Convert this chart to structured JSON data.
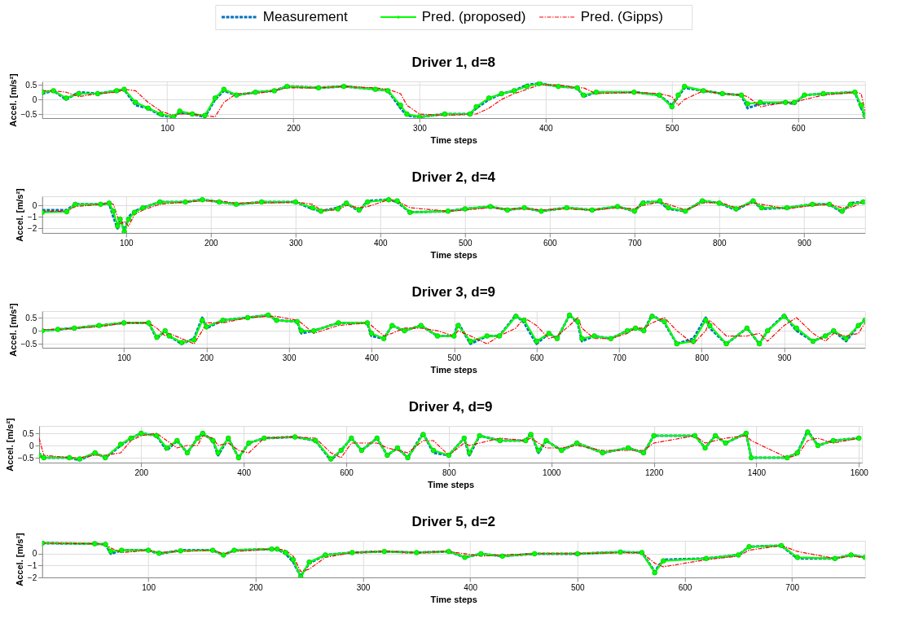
{
  "chart_data": [
    {
      "type": "line",
      "title": "Driver 1, d=8",
      "xlabel": "Time steps",
      "ylabel": "Accel. [m/s²]",
      "legend": "top",
      "grid": true,
      "xlim": [
        1,
        653
      ],
      "ylim": [
        -0.64,
        0.62
      ],
      "xticks": [
        100,
        200,
        300,
        400,
        500,
        600
      ],
      "yticks": [
        -0.5,
        0,
        0.5
      ],
      "x": [
        1,
        10,
        20,
        30,
        45,
        60,
        66,
        75,
        85,
        95,
        105,
        110,
        120,
        130,
        138,
        145,
        155,
        170,
        185,
        195,
        220,
        240,
        265,
        275,
        285,
        290,
        300,
        320,
        340,
        345,
        355,
        365,
        375,
        385,
        395,
        410,
        425,
        430,
        440,
        470,
        490,
        500,
        505,
        510,
        525,
        540,
        555,
        560,
        570,
        590,
        597,
        605,
        620,
        645,
        650,
        653
      ],
      "series": [
        {
          "name": "Measurement",
          "color": "#0072bd",
          "line_style": "dashed",
          "marker": "none",
          "values": [
            0.2,
            0.3,
            0.0,
            0.25,
            0.2,
            0.3,
            0.35,
            -0.2,
            -0.3,
            -0.55,
            -0.6,
            -0.45,
            -0.5,
            -0.6,
            0.0,
            0.3,
            0.15,
            0.25,
            0.3,
            0.45,
            0.4,
            0.45,
            0.35,
            0.3,
            -0.3,
            -0.55,
            -0.6,
            -0.5,
            -0.5,
            -0.3,
            0.0,
            0.2,
            0.3,
            0.5,
            0.55,
            0.45,
            0.4,
            0.1,
            0.25,
            0.25,
            0.15,
            -0.2,
            0.1,
            0.4,
            0.3,
            0.2,
            0.15,
            -0.3,
            -0.15,
            -0.1,
            -0.15,
            0.15,
            0.2,
            0.25,
            -0.3,
            -0.55
          ]
        },
        {
          "name": "Pred. (proposed)",
          "color": "#00ff00",
          "line_style": "solid",
          "marker": "circle",
          "values": [
            0.25,
            0.3,
            0.05,
            0.2,
            0.2,
            0.3,
            0.35,
            -0.1,
            -0.3,
            -0.5,
            -0.6,
            -0.4,
            -0.5,
            -0.55,
            0.05,
            0.35,
            0.15,
            0.25,
            0.3,
            0.45,
            0.4,
            0.45,
            0.35,
            0.3,
            -0.2,
            -0.5,
            -0.6,
            -0.5,
            -0.5,
            -0.25,
            0.05,
            0.2,
            0.3,
            0.45,
            0.55,
            0.45,
            0.4,
            0.15,
            0.25,
            0.25,
            0.15,
            -0.25,
            0.15,
            0.45,
            0.3,
            0.2,
            0.15,
            -0.15,
            -0.1,
            -0.1,
            -0.1,
            0.15,
            0.2,
            0.25,
            -0.2,
            -0.55
          ]
        },
        {
          "name": "Pred. (Gipps)",
          "color": "#ff0000",
          "line_style": "dashdot",
          "marker": "none",
          "values": [
            0.3,
            0.3,
            0.25,
            0.1,
            0.2,
            0.25,
            0.35,
            0.3,
            -0.1,
            -0.4,
            -0.55,
            -0.5,
            -0.5,
            -0.55,
            -0.6,
            -0.1,
            0.2,
            0.2,
            0.3,
            0.4,
            0.4,
            0.45,
            0.4,
            0.35,
            0.2,
            -0.2,
            -0.5,
            -0.55,
            -0.5,
            -0.5,
            -0.3,
            0.0,
            0.2,
            0.35,
            0.5,
            0.5,
            0.4,
            0.4,
            0.2,
            0.25,
            0.2,
            0.1,
            -0.2,
            0.0,
            0.3,
            0.2,
            0.15,
            0.1,
            -0.25,
            -0.1,
            -0.1,
            0.0,
            0.15,
            0.25,
            0.2,
            -0.4
          ]
        }
      ]
    },
    {
      "type": "line",
      "title": "Driver 2, d=4",
      "xlabel": "Time steps",
      "ylabel": "Accel. [m/s²]",
      "grid": true,
      "xlim": [
        1,
        972
      ],
      "ylim": [
        -2.4,
        0.8
      ],
      "xticks": [
        100,
        200,
        300,
        400,
        500,
        600,
        700,
        800,
        900
      ],
      "yticks": [
        -2,
        -1,
        0
      ],
      "x": [
        1,
        30,
        40,
        70,
        80,
        85,
        90,
        93,
        98,
        103,
        110,
        120,
        140,
        170,
        190,
        210,
        230,
        260,
        300,
        320,
        330,
        350,
        360,
        375,
        385,
        410,
        420,
        435,
        480,
        500,
        530,
        550,
        570,
        590,
        620,
        650,
        680,
        700,
        710,
        730,
        740,
        760,
        780,
        800,
        820,
        840,
        850,
        880,
        910,
        930,
        945,
        955,
        970
      ],
      "series": [
        {
          "color": "#0072bd",
          "line_style": "dashed",
          "marker": "none",
          "values": [
            -0.4,
            -0.4,
            0.1,
            0.1,
            0.2,
            -1,
            -2,
            -1,
            -2.3,
            -1,
            -0.5,
            -0.2,
            0.3,
            0.3,
            0.5,
            0.3,
            0.1,
            0.3,
            0.3,
            -0.3,
            -0.5,
            -0.2,
            0.2,
            -0.5,
            0.4,
            0.5,
            0.3,
            -0.6,
            -0.5,
            -0.3,
            -0.1,
            -0.4,
            -0.2,
            -0.5,
            -0.2,
            -0.4,
            -0.1,
            -0.5,
            0.3,
            0.3,
            -0.3,
            -0.5,
            0.4,
            0.2,
            -0.4,
            0.4,
            -0.3,
            -0.2,
            0.1,
            0.1,
            -0.6,
            0.2,
            0.3
          ]
        },
        {
          "color": "#00ff00",
          "line_style": "solid",
          "marker": "circle",
          "values": [
            -0.6,
            -0.55,
            0.1,
            0.1,
            0.2,
            -0.5,
            -1.8,
            -1.2,
            -2.3,
            -1.2,
            -0.6,
            -0.2,
            0.3,
            0.3,
            0.5,
            0.3,
            0.1,
            0.3,
            0.3,
            -0.2,
            -0.5,
            -0.3,
            0.2,
            -0.4,
            0.3,
            0.5,
            0.4,
            -0.6,
            -0.5,
            -0.3,
            -0.1,
            -0.4,
            -0.2,
            -0.5,
            -0.2,
            -0.4,
            -0.1,
            -0.5,
            0.2,
            0.4,
            -0.2,
            -0.5,
            0.4,
            0.2,
            -0.3,
            0.4,
            -0.2,
            -0.2,
            0.1,
            0.1,
            -0.5,
            0.1,
            0.3
          ]
        },
        {
          "color": "#ff0000",
          "line_style": "dashdot",
          "marker": "none",
          "values": [
            -0.5,
            -0.5,
            -0.1,
            0.1,
            0.2,
            0.1,
            -1,
            -1.6,
            -1.4,
            -1.8,
            -0.8,
            -0.4,
            0.1,
            0.3,
            0.4,
            0.4,
            0.2,
            0.2,
            0.3,
            0.1,
            -0.4,
            -0.4,
            0.0,
            -0.2,
            -0.1,
            0.5,
            0.4,
            -0.2,
            -0.5,
            -0.4,
            -0.2,
            -0.3,
            -0.3,
            -0.4,
            -0.3,
            -0.4,
            -0.2,
            -0.3,
            0.0,
            0.3,
            0.1,
            -0.4,
            0.2,
            0.3,
            -0.2,
            0.2,
            0.1,
            -0.3,
            0.0,
            0.1,
            -0.2,
            -0.2,
            0.3
          ]
        }
      ]
    },
    {
      "type": "line",
      "title": "Driver 3, d=9",
      "xlabel": "Time steps",
      "ylabel": "Accel. [m/s²]",
      "grid": true,
      "xlim": [
        1,
        998
      ],
      "ylim": [
        -0.65,
        0.75
      ],
      "xticks": [
        100,
        200,
        300,
        400,
        500,
        600,
        700,
        800,
        900
      ],
      "yticks": [
        -0.5,
        0,
        0.5
      ],
      "x": [
        1,
        20,
        40,
        70,
        100,
        130,
        140,
        150,
        155,
        170,
        185,
        195,
        200,
        220,
        250,
        275,
        285,
        310,
        315,
        330,
        360,
        395,
        400,
        415,
        425,
        440,
        460,
        480,
        500,
        505,
        520,
        540,
        555,
        575,
        585,
        600,
        615,
        625,
        640,
        650,
        655,
        670,
        690,
        710,
        720,
        730,
        740,
        755,
        770,
        790,
        805,
        810,
        830,
        855,
        870,
        880,
        900,
        915,
        935,
        950,
        960,
        975,
        990,
        998
      ],
      "series": [
        {
          "color": "#0072bd",
          "line_style": "dashed",
          "marker": "none",
          "values": [
            0,
            0.05,
            0.1,
            0.2,
            0.3,
            0.3,
            -0.3,
            0.0,
            -0.2,
            -0.5,
            -0.3,
            0.5,
            0.1,
            0.4,
            0.5,
            0.6,
            0.4,
            0.35,
            -0.1,
            0.0,
            0.3,
            0.3,
            -0.2,
            -0.3,
            0.2,
            0.0,
            0.2,
            -0.2,
            -0.2,
            0.3,
            -0.5,
            -0.2,
            -0.2,
            0.6,
            0.3,
            -0.5,
            -0.1,
            -0.3,
            0.6,
            0.3,
            -0.4,
            -0.2,
            -0.3,
            0.0,
            0.1,
            0.0,
            0.6,
            0.3,
            -0.5,
            -0.3,
            0.5,
            0.1,
            -0.5,
            0.1,
            -0.5,
            0.0,
            0.6,
            0.0,
            -0.4,
            -0.2,
            0.0,
            -0.4,
            0.2,
            0.4
          ]
        },
        {
          "color": "#00ff00",
          "line_style": "solid",
          "marker": "circle",
          "values": [
            0,
            0.05,
            0.1,
            0.2,
            0.3,
            0.3,
            -0.25,
            0.0,
            -0.2,
            -0.45,
            -0.35,
            0.4,
            0.15,
            0.4,
            0.5,
            0.6,
            0.4,
            0.35,
            0.0,
            0.0,
            0.3,
            0.3,
            -0.1,
            -0.3,
            0.2,
            0.0,
            0.2,
            -0.2,
            -0.2,
            0.2,
            -0.4,
            -0.2,
            -0.2,
            0.55,
            0.4,
            -0.4,
            -0.1,
            -0.3,
            0.6,
            0.35,
            -0.3,
            -0.2,
            -0.3,
            0.0,
            0.1,
            0.0,
            0.55,
            0.35,
            -0.5,
            -0.4,
            0.4,
            0.2,
            -0.5,
            0.1,
            -0.5,
            0.0,
            0.55,
            0.1,
            -0.4,
            -0.2,
            0.0,
            -0.3,
            0.2,
            0.4
          ]
        },
        {
          "color": "#ff0000",
          "line_style": "dashdot",
          "marker": "none",
          "values": [
            0.05,
            0.05,
            0.1,
            0.15,
            0.3,
            0.3,
            0.1,
            -0.2,
            -0.1,
            -0.3,
            -0.5,
            0.0,
            0.3,
            0.3,
            0.5,
            0.55,
            0.55,
            0.4,
            0.3,
            -0.1,
            0.2,
            0.3,
            0.2,
            -0.2,
            -0.1,
            0.1,
            0.1,
            0.0,
            -0.2,
            0.0,
            -0.2,
            -0.5,
            -0.2,
            0.1,
            0.5,
            0.2,
            -0.3,
            -0.2,
            0.2,
            0.5,
            0.1,
            -0.3,
            -0.3,
            -0.1,
            0.1,
            0.1,
            0.3,
            0.5,
            0.0,
            -0.5,
            0.0,
            0.4,
            -0.2,
            -0.2,
            -0.1,
            -0.4,
            0.2,
            0.5,
            -0.1,
            -0.4,
            -0.1,
            -0.2,
            -0.1,
            0.3
          ]
        }
      ]
    },
    {
      "type": "line",
      "title": "Driver 4, d=9",
      "xlabel": "Time steps",
      "ylabel": "Accel. [m/s²]",
      "grid": true,
      "xlim": [
        1,
        1606
      ],
      "ylim": [
        -0.7,
        0.8
      ],
      "xticks": [
        200,
        400,
        600,
        800,
        1000,
        1200,
        1400,
        1600
      ],
      "yticks": [
        -0.5,
        0,
        0.5
      ],
      "x": [
        1,
        10,
        60,
        80,
        110,
        130,
        160,
        180,
        200,
        230,
        250,
        270,
        290,
        310,
        320,
        340,
        350,
        370,
        390,
        410,
        440,
        500,
        540,
        570,
        590,
        610,
        630,
        660,
        680,
        700,
        720,
        750,
        770,
        800,
        830,
        840,
        860,
        900,
        950,
        960,
        975,
        990,
        1020,
        1050,
        1100,
        1150,
        1180,
        1200,
        1280,
        1300,
        1320,
        1340,
        1380,
        1390,
        1460,
        1480,
        1500,
        1520,
        1550,
        1600
      ],
      "series": [
        {
          "color": "#0072bd",
          "line_style": "dashed",
          "marker": "none",
          "values": [
            -0.4,
            -0.5,
            -0.5,
            -0.6,
            -0.3,
            -0.5,
            0.0,
            0.3,
            0.5,
            0.4,
            -0.2,
            0.2,
            -0.3,
            0.3,
            0.5,
            0.2,
            -0.4,
            0.3,
            -0.5,
            0.1,
            0.3,
            0.35,
            0.2,
            -0.6,
            -0.2,
            0.3,
            -0.2,
            0.3,
            -0.4,
            -0.1,
            -0.5,
            0.5,
            -0.3,
            -0.4,
            0.3,
            -0.4,
            0.4,
            0.2,
            0.2,
            0.5,
            -0.3,
            0.2,
            -0.2,
            0.1,
            -0.3,
            -0.1,
            -0.3,
            0.4,
            0.4,
            -0.1,
            0.4,
            0.1,
            0.5,
            -0.5,
            -0.5,
            -0.3,
            0.6,
            0.0,
            0.2,
            0.3
          ]
        },
        {
          "color": "#00ff00",
          "line_style": "solid",
          "marker": "circle",
          "values": [
            -0.4,
            -0.5,
            -0.5,
            -0.55,
            -0.3,
            -0.5,
            0.05,
            0.3,
            0.5,
            0.4,
            -0.1,
            0.2,
            -0.3,
            0.3,
            0.5,
            0.2,
            -0.3,
            0.3,
            -0.5,
            0.1,
            0.3,
            0.35,
            0.2,
            -0.55,
            -0.2,
            0.3,
            -0.2,
            0.3,
            -0.4,
            -0.1,
            -0.5,
            0.45,
            -0.2,
            -0.4,
            0.3,
            -0.3,
            0.4,
            0.2,
            0.2,
            0.45,
            -0.2,
            0.2,
            -0.2,
            0.1,
            -0.3,
            -0.1,
            -0.3,
            0.4,
            0.4,
            -0.1,
            0.4,
            0.1,
            0.5,
            -0.5,
            -0.5,
            -0.3,
            0.55,
            0.0,
            0.2,
            0.3
          ]
        },
        {
          "color": "#ff0000",
          "line_style": "dashdot",
          "marker": "none",
          "values": [
            0.3,
            -0.4,
            -0.5,
            -0.5,
            -0.4,
            -0.4,
            -0.3,
            0.2,
            0.4,
            0.5,
            0.2,
            -0.1,
            0.0,
            0.0,
            0.4,
            0.3,
            0.0,
            0.1,
            -0.2,
            -0.3,
            0.3,
            0.35,
            0.3,
            -0.3,
            -0.5,
            0.1,
            0.1,
            0.1,
            -0.1,
            -0.2,
            -0.3,
            0.2,
            0.2,
            -0.4,
            0.1,
            0.0,
            0.1,
            0.3,
            0.2,
            0.3,
            0.1,
            -0.1,
            -0.1,
            0.0,
            -0.2,
            -0.2,
            -0.2,
            0.1,
            0.4,
            0.1,
            0.2,
            0.3,
            0.4,
            0.2,
            -0.5,
            -0.4,
            0.2,
            0.3,
            0.1,
            0.3
          ]
        }
      ]
    },
    {
      "type": "line",
      "title": "Driver 5, d=2",
      "xlabel": "Time steps",
      "ylabel": "Accel. [m/s²]",
      "grid": true,
      "xlim": [
        1,
        768
      ],
      "ylim": [
        -2,
        1.1
      ],
      "xticks": [
        100,
        200,
        300,
        400,
        500,
        600,
        700
      ],
      "yticks": [
        -2,
        -1,
        0
      ],
      "x": [
        1,
        50,
        60,
        65,
        75,
        100,
        110,
        130,
        160,
        170,
        180,
        215,
        220,
        228,
        235,
        242,
        250,
        265,
        290,
        320,
        350,
        380,
        395,
        410,
        430,
        460,
        500,
        540,
        560,
        572,
        580,
        620,
        650,
        660,
        690,
        705,
        740,
        755,
        768
      ],
      "series": [
        {
          "color": "#0072bd",
          "line_style": "dashed",
          "marker": "none",
          "values": [
            0.9,
            0.85,
            0.8,
            0.0,
            0.3,
            0.3,
            0.0,
            0.3,
            0.3,
            -0.1,
            0.3,
            0.4,
            0.4,
            0.0,
            -0.7,
            -1.9,
            -0.8,
            -0.1,
            0.1,
            0.2,
            0.1,
            0.2,
            -0.3,
            0.0,
            -0.2,
            0.0,
            0.0,
            0.15,
            0.1,
            -1.5,
            -0.5,
            -0.4,
            -0.1,
            0.6,
            0.7,
            -0.4,
            -0.4,
            -0.1,
            -0.3
          ]
        },
        {
          "color": "#00ff00",
          "line_style": "solid",
          "marker": "circle",
          "values": [
            0.9,
            0.85,
            0.8,
            0.2,
            0.3,
            0.3,
            0.05,
            0.25,
            0.3,
            -0.1,
            0.3,
            0.4,
            0.4,
            0.1,
            -0.5,
            -1.95,
            -0.7,
            -0.1,
            0.1,
            0.2,
            0.1,
            0.2,
            -0.3,
            0.0,
            -0.2,
            0.0,
            0.0,
            0.15,
            0.1,
            -1.6,
            -0.6,
            -0.4,
            -0.1,
            0.6,
            0.7,
            -0.3,
            -0.4,
            -0.1,
            -0.3
          ]
        },
        {
          "color": "#ff0000",
          "line_style": "dashdot",
          "marker": "none",
          "values": [
            0.9,
            0.85,
            0.8,
            0.5,
            0.1,
            0.3,
            0.1,
            0.2,
            0.3,
            0.0,
            0.2,
            0.4,
            0.4,
            0.3,
            -0.2,
            -1.5,
            -1.3,
            -0.3,
            0.1,
            0.2,
            0.1,
            0.2,
            0.0,
            -0.2,
            -0.1,
            0.0,
            0.0,
            0.1,
            0.1,
            -0.8,
            -1.1,
            -0.5,
            -0.2,
            0.3,
            0.7,
            0.2,
            -0.4,
            -0.2,
            -0.3
          ]
        }
      ]
    }
  ]
}
